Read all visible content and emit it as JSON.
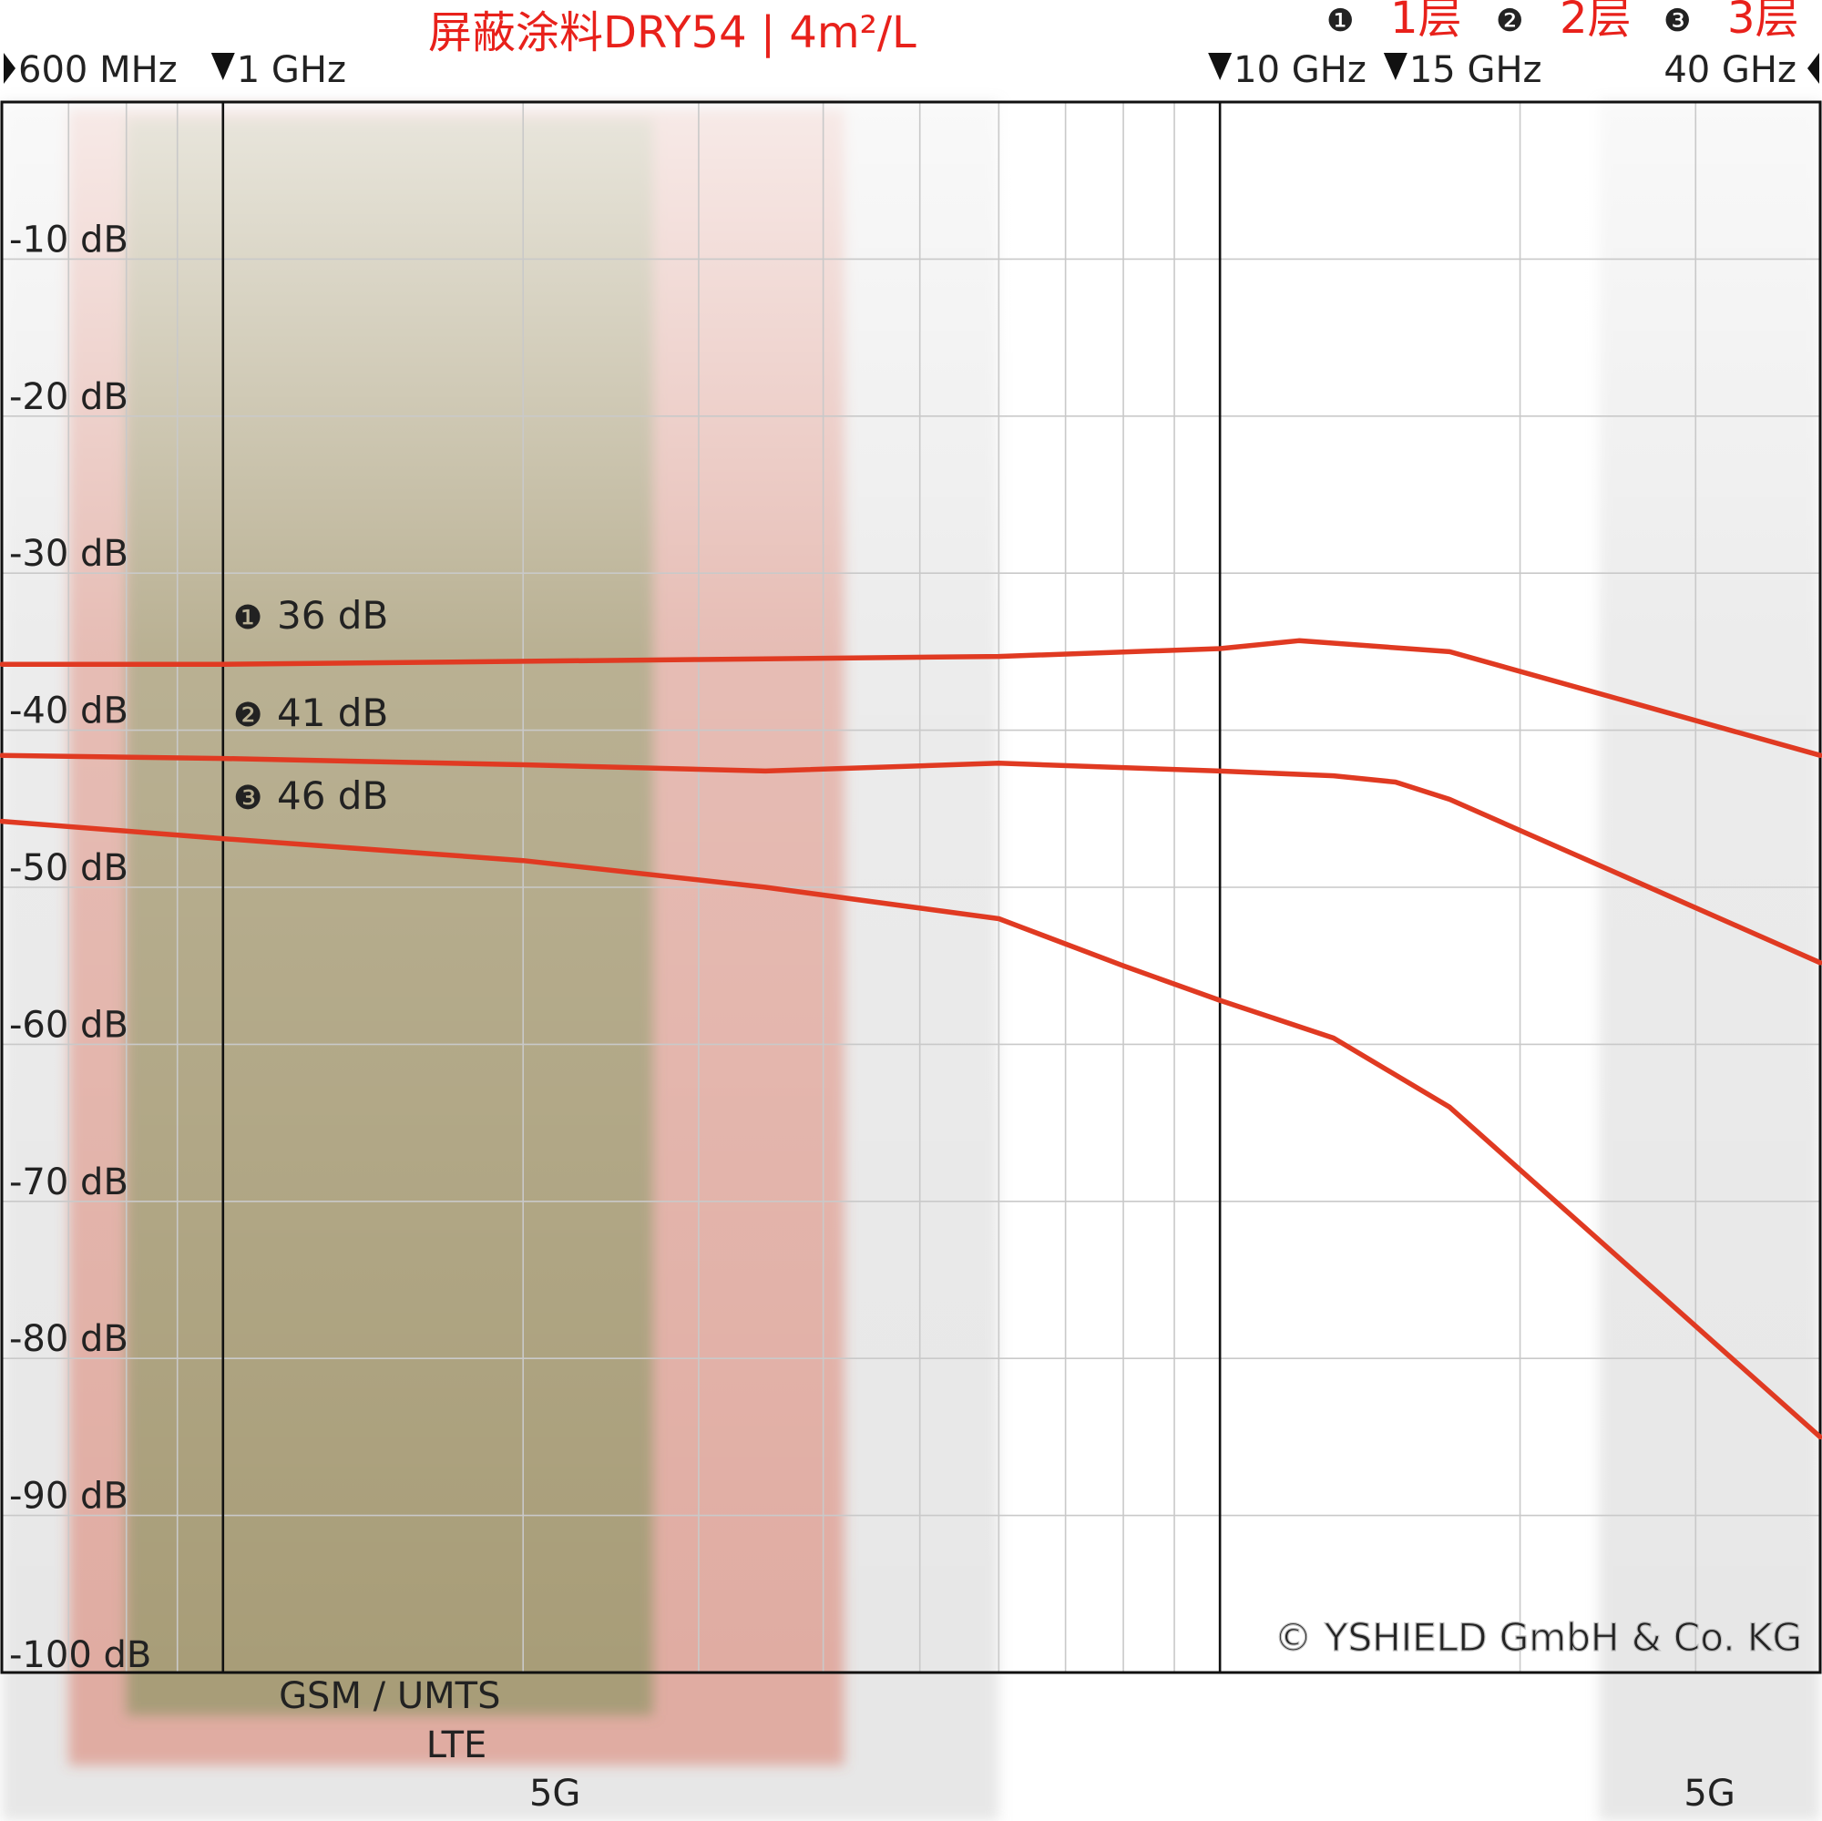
{
  "chart_data": {
    "type": "line",
    "title": "屏蔽涂料DRY54 | 4m²/L",
    "legend": {
      "placement": "top-right",
      "items": [
        {
          "marker": "❶",
          "label": "1层"
        },
        {
          "marker": "❷",
          "label": "2层"
        },
        {
          "marker": "❸",
          "label": "3层"
        }
      ]
    },
    "x_scale": "log",
    "x_unit": "GHz",
    "xlim": [
      0.6,
      40
    ],
    "ylim": [
      -100,
      0
    ],
    "grid": true,
    "x_top_labels": [
      {
        "x": 0.6,
        "text": "600 MHz",
        "marker": "right-triangle"
      },
      {
        "x": 1,
        "text": "1 GHz",
        "marker": "down-triangle"
      },
      {
        "x": 10,
        "text": "10 GHz",
        "marker": "down-triangle"
      },
      {
        "x": 15,
        "text": "15 GHz",
        "marker": "down-triangle"
      },
      {
        "x": 40,
        "text": "40 GHz",
        "marker": "left-triangle"
      }
    ],
    "y_ticks": [
      {
        "y": -10,
        "label": "-10 dB"
      },
      {
        "y": -20,
        "label": "-20 dB"
      },
      {
        "y": -30,
        "label": "-30 dB"
      },
      {
        "y": -40,
        "label": "-40 dB"
      },
      {
        "y": -50,
        "label": "-50 dB"
      },
      {
        "y": -60,
        "label": "-60 dB"
      },
      {
        "y": -70,
        "label": "-70 dB"
      },
      {
        "y": -80,
        "label": "-80 dB"
      },
      {
        "y": -90,
        "label": "-90 dB"
      },
      {
        "y": -100,
        "label": "-100 dB"
      }
    ],
    "emphasized_verticals": [
      1,
      10
    ],
    "series": [
      {
        "marker": "❶",
        "annotation": "36 dB",
        "color": "#e03a22",
        "x": [
          0.6,
          1,
          3,
          6,
          10,
          12,
          17,
          40
        ],
        "y": [
          -35.8,
          -35.8,
          -35.5,
          -35.3,
          -34.8,
          -34.3,
          -35.0,
          -41.6
        ]
      },
      {
        "marker": "❷",
        "annotation": "41 dB",
        "color": "#e03a22",
        "x": [
          0.6,
          1,
          2,
          3.5,
          6,
          10,
          13,
          15,
          17,
          40
        ],
        "y": [
          -41.6,
          -41.8,
          -42.2,
          -42.6,
          -42.1,
          -42.6,
          -42.9,
          -43.3,
          -44.4,
          -54.8
        ]
      },
      {
        "marker": "❸",
        "annotation": "46 dB",
        "color": "#e03a22",
        "x": [
          0.6,
          1,
          2,
          3.5,
          6,
          8,
          10,
          13,
          17,
          40
        ],
        "y": [
          -45.8,
          -46.9,
          -48.3,
          -50.0,
          -52.0,
          -55.0,
          -57.2,
          -59.6,
          -64.0,
          -85.0
        ]
      }
    ],
    "bands": [
      {
        "label": "GSM / UMTS",
        "x": [
          0.8,
          2.7
        ],
        "color": "#7a8f55"
      },
      {
        "label": "LTE",
        "x": [
          0.7,
          4.2
        ],
        "color": "#d65a45"
      },
      {
        "label": "5G",
        "x": [
          0.6,
          6
        ],
        "color": "#b4b4b4"
      },
      {
        "label": "5G",
        "x": [
          24,
          40
        ],
        "color": "#b4b4b4"
      }
    ],
    "watermark": "© YSHIELD GmbH & Co. KG"
  }
}
